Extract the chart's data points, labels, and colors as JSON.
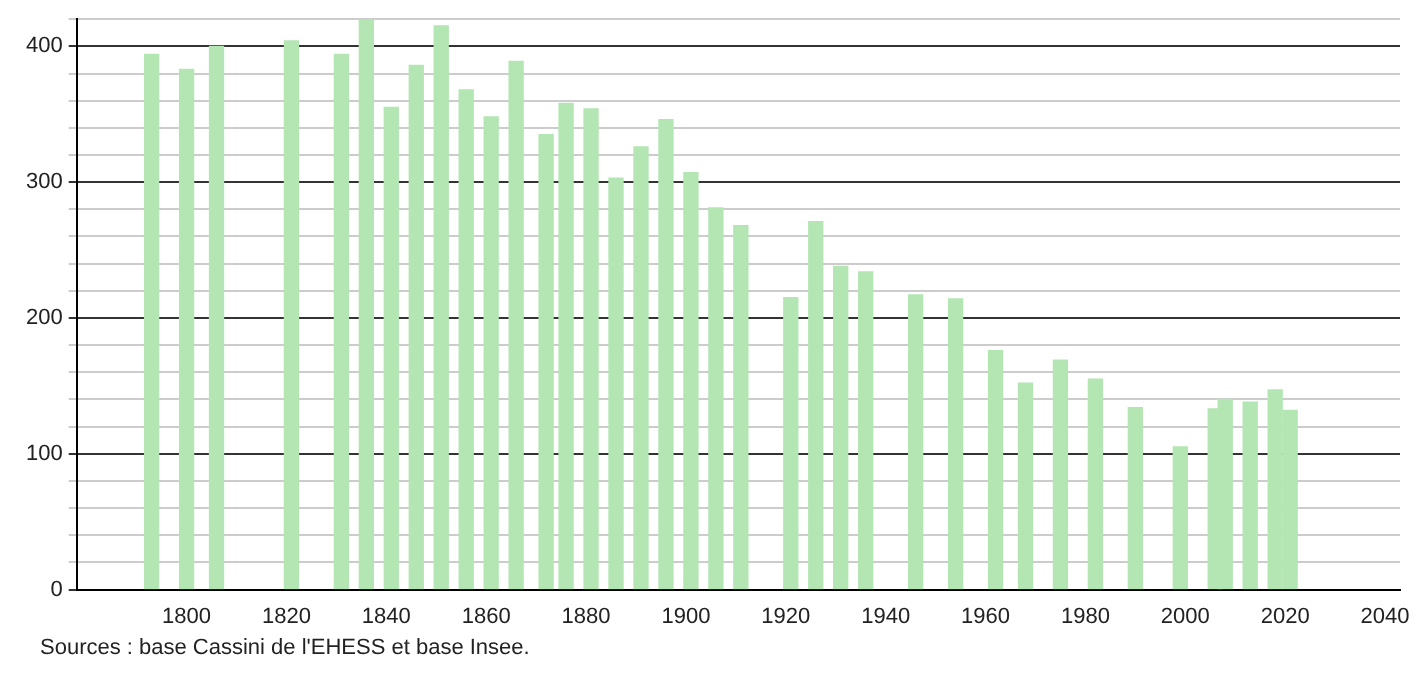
{
  "chart_data": {
    "type": "bar",
    "x": [
      1793,
      1800,
      1806,
      1821,
      1831,
      1836,
      1841,
      1846,
      1851,
      1856,
      1861,
      1866,
      1872,
      1876,
      1881,
      1886,
      1891,
      1896,
      1901,
      1906,
      1911,
      1921,
      1926,
      1931,
      1936,
      1946,
      1954,
      1962,
      1968,
      1975,
      1982,
      1990,
      1999,
      2006,
      2008,
      2013,
      2018,
      2021
    ],
    "values": [
      394,
      383,
      400,
      404,
      394,
      420,
      355,
      386,
      415,
      368,
      348,
      389,
      335,
      358,
      354,
      303,
      326,
      346,
      307,
      281,
      268,
      215,
      271,
      238,
      234,
      217,
      214,
      176,
      152,
      169,
      155,
      134,
      105,
      133,
      140,
      138,
      147,
      132
    ],
    "color": "#b3e6b3",
    "xlim": [
      1778,
      2043
    ],
    "xticks": [
      1800,
      1820,
      1840,
      1860,
      1880,
      1900,
      1920,
      1940,
      1960,
      1980,
      2000,
      2020,
      2040
    ],
    "ylim": [
      0,
      420
    ],
    "yticks": [
      0,
      {
        "value": 20,
        "label": null
      },
      {
        "value": 40,
        "label": null
      },
      {
        "value": 60,
        "label": null
      },
      {
        "value": 80,
        "label": null
      },
      100,
      {
        "value": 120,
        "label": null
      },
      {
        "value": 140,
        "label": null
      },
      {
        "value": 160,
        "label": null
      },
      {
        "value": 180,
        "label": null
      },
      200,
      {
        "value": 220,
        "label": null
      },
      {
        "value": 240,
        "label": null
      },
      {
        "value": 260,
        "label": null
      },
      {
        "value": 280,
        "label": null
      },
      300,
      {
        "value": 320,
        "label": null
      },
      {
        "value": 340,
        "label": null
      },
      {
        "value": 360,
        "label": null
      },
      {
        "value": 380,
        "label": null
      },
      400,
      {
        "value": 420,
        "label": null
      }
    ],
    "grid": "y",
    "annotations": [
      "Sources : base Cassini de l'EHESS et base Insee."
    ]
  }
}
